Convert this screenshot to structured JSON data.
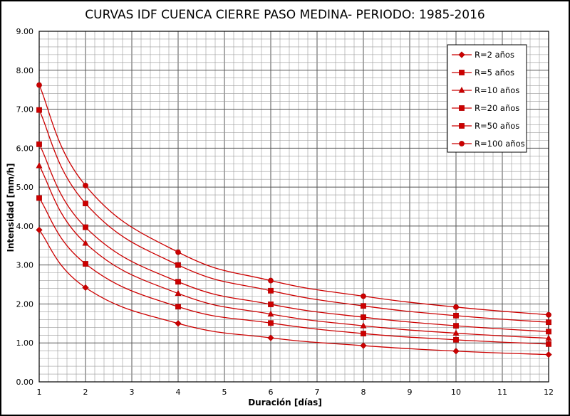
{
  "colors": {
    "series": "#cc0000",
    "grid_major": "#555555",
    "grid_minor": "#9a9a9a"
  },
  "chart_data": {
    "type": "line",
    "title": "CURVAS IDF CUENCA CIERRE PASO MEDINA- PERIODO: 1985-2016",
    "xlabel": "Duración [días]",
    "ylabel": "Intensidad [mm/h]",
    "xlim": [
      1,
      12
    ],
    "ylim": [
      0,
      9
    ],
    "x_ticks": [
      "1",
      "2",
      "3",
      "4",
      "5",
      "6",
      "7",
      "8",
      "9",
      "10",
      "11",
      "12"
    ],
    "y_ticks": [
      "0.00",
      "1.00",
      "2.00",
      "3.00",
      "4.00",
      "5.00",
      "6.00",
      "7.00",
      "8.00",
      "9.00"
    ],
    "grid": true,
    "legend_position": "top-right",
    "x": [
      1,
      2,
      4,
      6,
      8,
      10,
      12
    ],
    "series": [
      {
        "name": "R=2 años",
        "marker": "diamond",
        "values": [
          3.9,
          2.42,
          1.5,
          1.13,
          0.93,
          0.79,
          0.7
        ]
      },
      {
        "name": "R=5 años",
        "marker": "square",
        "values": [
          4.72,
          3.03,
          1.93,
          1.51,
          1.24,
          1.08,
          0.97
        ]
      },
      {
        "name": "R=10 años",
        "marker": "triangle",
        "values": [
          5.55,
          3.56,
          2.27,
          1.74,
          1.44,
          1.25,
          1.12
        ]
      },
      {
        "name": "R=20 años",
        "marker": "square",
        "values": [
          6.1,
          3.97,
          2.57,
          1.99,
          1.66,
          1.44,
          1.29
        ]
      },
      {
        "name": "R=50 años",
        "marker": "square",
        "values": [
          6.98,
          4.58,
          3.0,
          2.34,
          1.95,
          1.7,
          1.53
        ]
      },
      {
        "name": "R=100 años",
        "marker": "circle",
        "values": [
          7.62,
          5.04,
          3.33,
          2.6,
          2.2,
          1.92,
          1.72
        ]
      }
    ]
  }
}
